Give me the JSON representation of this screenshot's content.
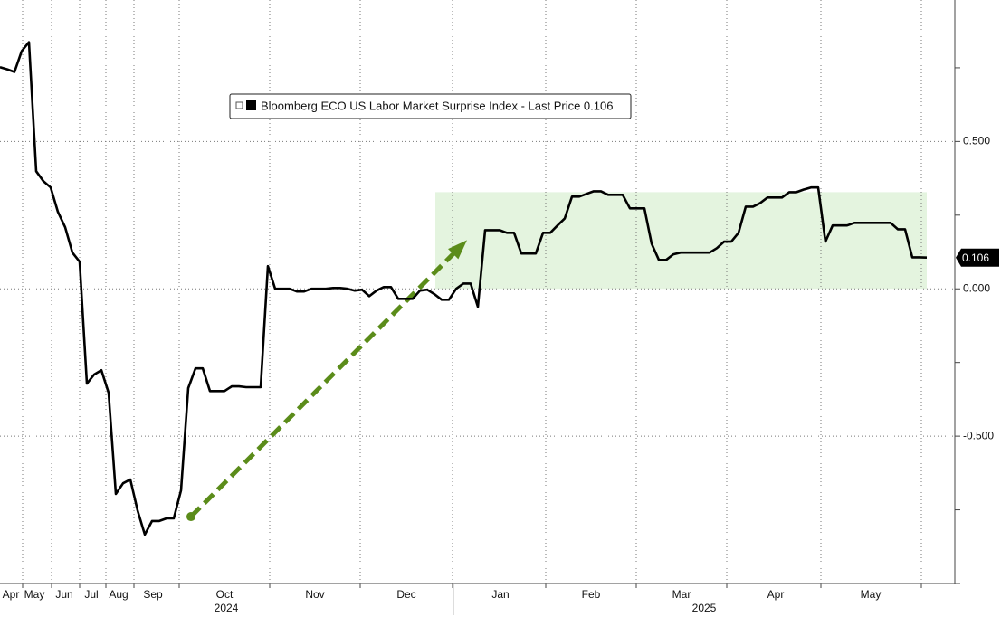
{
  "chart_data": {
    "type": "line",
    "month_labels": [
      "Apr",
      "May",
      "Jun",
      "Jul",
      "Aug",
      "Sep",
      "Oct",
      "Nov",
      "Dec",
      "Jan",
      "Feb",
      "Mar",
      "Apr",
      "May"
    ],
    "year_labels": [
      "2024",
      "2025"
    ],
    "series": [
      {
        "name": "Bloomberg ECO US Labor Market Surprise Index - Last Price 0.106",
        "color": "#000000",
        "values": [
          0.752,
          0.745,
          0.736,
          0.807,
          0.837,
          0.399,
          0.365,
          0.344,
          0.261,
          0.209,
          0.123,
          0.092,
          -0.322,
          -0.291,
          -0.276,
          -0.353,
          -0.696,
          -0.66,
          -0.647,
          -0.752,
          -0.834,
          -0.788,
          -0.788,
          -0.779,
          -0.779,
          -0.684,
          -0.337,
          -0.27,
          -0.27,
          -0.347,
          -0.347,
          -0.347,
          -0.331,
          -0.331,
          -0.334,
          -0.334,
          -0.334,
          0.077,
          0.0,
          0.0,
          0.0,
          -0.009,
          -0.009,
          0.0,
          0.0,
          0.0,
          0.003,
          0.003,
          0.0,
          -0.006,
          -0.003,
          -0.025,
          -0.006,
          0.006,
          0.006,
          -0.034,
          -0.034,
          -0.034,
          -0.006,
          -0.003,
          -0.018,
          -0.037,
          -0.037,
          0.0,
          0.018,
          0.018,
          -0.061,
          0.199,
          0.199,
          0.199,
          0.19,
          0.19,
          0.12,
          0.12,
          0.12,
          0.19,
          0.19,
          0.215,
          0.239,
          0.313,
          0.313,
          0.322,
          0.331,
          0.331,
          0.319,
          0.319,
          0.319,
          0.273,
          0.273,
          0.273,
          0.153,
          0.098,
          0.098,
          0.117,
          0.123,
          0.123,
          0.123,
          0.123,
          0.123,
          0.138,
          0.16,
          0.16,
          0.19,
          0.279,
          0.279,
          0.291,
          0.31,
          0.31,
          0.31,
          0.328,
          0.328,
          0.337,
          0.344,
          0.344,
          0.16,
          0.215,
          0.215,
          0.215,
          0.224,
          0.224,
          0.224,
          0.224,
          0.224,
          0.224,
          0.202,
          0.202,
          0.107,
          0.107,
          0.106
        ]
      }
    ],
    "last_value": 0.106,
    "ylim": [
      -1.0,
      0.98
    ],
    "yticks": [
      {
        "value": -0.5,
        "label": "-0.500"
      },
      {
        "value": 0,
        "label": "0.000"
      },
      {
        "value": 0.5,
        "label": "0.500"
      }
    ],
    "yminorticks": [
      -1.0,
      -0.75,
      -0.25,
      0.25,
      0.75
    ],
    "grid": true,
    "highlight_band": {
      "color": "#e4f4df",
      "ylim": [
        0,
        0.328
      ]
    },
    "arrow": {
      "color": "#5b8c1a",
      "from": -0.773,
      "to": 0.153
    }
  }
}
